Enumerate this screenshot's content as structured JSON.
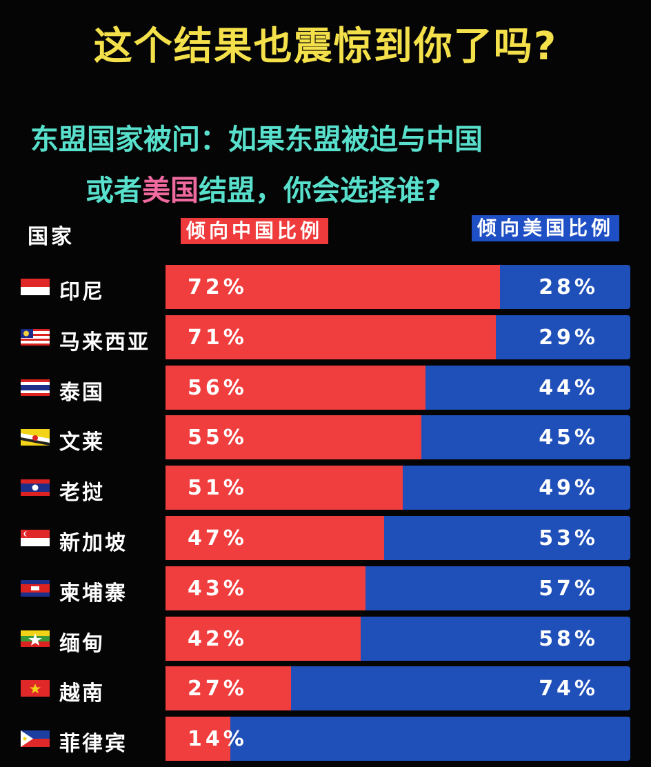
{
  "title": "这个结果也震惊到你了吗?",
  "subtitle": {
    "line1": "东盟国家被问：如果东盟被迫与中国",
    "line2_a": "或者",
    "line2_b": "美国",
    "line2_c": "结盟，你会选择谁?"
  },
  "headers": {
    "country": "国家",
    "china": "倾向中国比例",
    "usa": "倾向美国比例"
  },
  "colors": {
    "china": "#f03e3e",
    "usa": "#1f4fb8",
    "title": "#f4e04a",
    "subtitle": "#58e0cc",
    "highlight": "#f06aa0"
  },
  "chart_data": {
    "type": "bar",
    "stacked": true,
    "orientation": "horizontal",
    "categories": [
      "印尼",
      "马来西亚",
      "泰国",
      "文莱",
      "老挝",
      "新加坡",
      "柬埔寨",
      "缅甸",
      "越南",
      "菲律宾"
    ],
    "flags": [
      "indonesia-flag-icon",
      "malaysia-flag-icon",
      "thailand-flag-icon",
      "brunei-flag-icon",
      "laos-flag-icon",
      "singapore-flag-icon",
      "cambodia-flag-icon",
      "myanmar-flag-icon",
      "vietnam-flag-icon",
      "philippines-flag-icon"
    ],
    "series": [
      {
        "name": "倾向中国比例",
        "values": [
          72,
          71,
          56,
          55,
          51,
          47,
          43,
          42,
          27,
          14
        ],
        "labels": [
          "72%",
          "71%",
          "56%",
          "55%",
          "51%",
          "47%",
          "43%",
          "42%",
          "27%",
          "14%"
        ]
      },
      {
        "name": "倾向美国比例",
        "values": [
          28,
          29,
          44,
          45,
          49,
          53,
          57,
          58,
          74,
          86
        ],
        "labels": [
          "28%",
          "29%",
          "44%",
          "45%",
          "49%",
          "53%",
          "57%",
          "58%",
          "74%",
          ""
        ]
      }
    ]
  }
}
